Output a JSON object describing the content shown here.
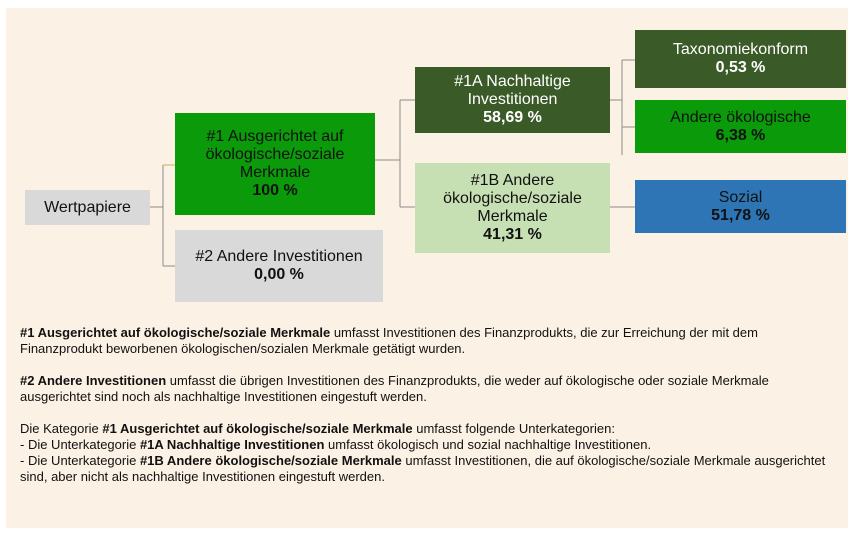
{
  "nodes": [
    {
      "label": "Wertpapiere"
    },
    {
      "label": "#1 Ausgerichtet auf ökologische/soziale Merkmale",
      "value": "100 %"
    },
    {
      "label": "#2 Andere Investitionen",
      "value": "0,00 %"
    },
    {
      "label": "#1A Nachhaltige Investitionen",
      "value": "58,69 %"
    },
    {
      "label": "#1B Andere ökologische/soziale Merkmale",
      "value": "41,31 %"
    },
    {
      "label": "Taxonomiekonform",
      "value": "0,53 %"
    },
    {
      "label": "Andere ökologische",
      "value": "6,38 %"
    },
    {
      "label": "Sozial",
      "value": "51,78 %"
    }
  ],
  "paragraphs": [
    {
      "bold": "#1 Ausgerichtet auf ökologische/soziale Merkmale",
      "text": "umfasst Investitionen des Finanzprodukts, die zur Erreichung der mit dem Finanzprodukt beworbenen ökologischen/sozialen Merkmale getätigt wurden."
    },
    {
      "bold": "#2 Andere Investitionen",
      "text": "umfasst die übrigen Investitionen des Finanzprodukts, die weder auf ökologische oder soziale Merkmale ausgerichtet sind noch als nachhaltige Investitionen eingestuft werden."
    }
  ],
  "categories": {
    "pre": "Die Kategorie",
    "bold": "#1 Ausgerichtet auf ökologische/soziale Merkmale",
    "post": "umfasst folgende Unterkategorien:",
    "items": [
      {
        "pre": "-  Die Unterkategorie",
        "bold": "#1A Nachhaltige Investitionen",
        "text": "umfasst ökologisch und sozial nachhaltige Investitionen."
      },
      {
        "pre": "-  Die Unterkategorie",
        "bold": "#1B Andere ökologische/soziale Merkmale",
        "text": "umfasst Investitionen, die auf ökologische/soziale Merkmale ausgerichtet sind, aber nicht als nachhaltige Investitionen eingestuft werden."
      }
    ]
  }
}
